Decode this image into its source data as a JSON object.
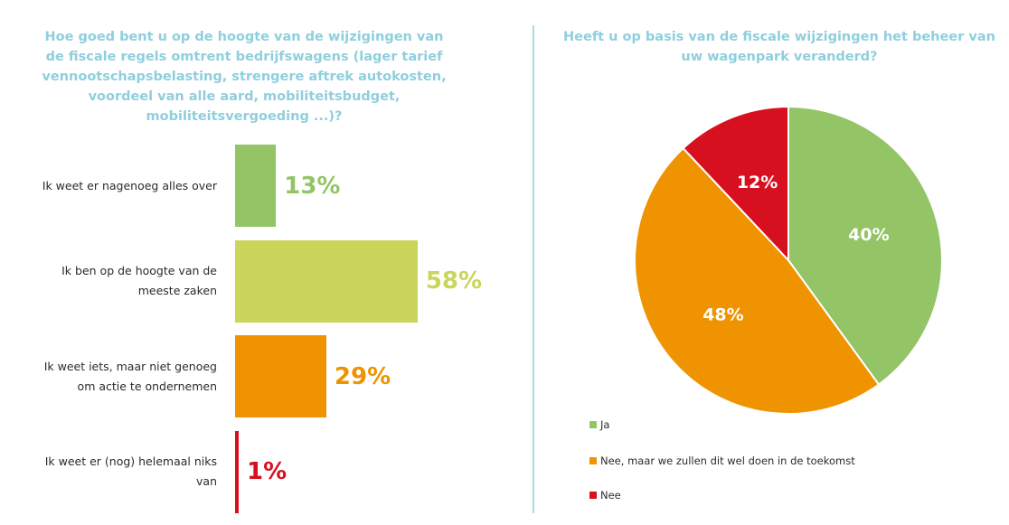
{
  "chart_data": [
    {
      "type": "bar",
      "orientation": "horizontal",
      "title": "Hoe goed bent u op de hoogte van de wijzigingen van de fiscale regels omtrent bedrijfswagens (lager tarief vennootschapsbelasting, strengere aftrek autokosten, voordeel van alle aard, mobiliteitsbudget, mobiliteitsvergoeding ...)?",
      "categories": [
        "Ik weet er nagenoeg alles over",
        "Ik ben op de hoogte van de meeste zaken",
        "Ik weet iets, maar niet genoeg om actie te ondernemen",
        "Ik weet er (nog) helemaal niks van"
      ],
      "values": [
        13,
        58,
        29,
        1
      ],
      "value_labels": [
        "13%",
        "58%",
        "29%",
        "1%"
      ],
      "colors": [
        "#93c465",
        "#c9d55b",
        "#ef9300",
        "#d7101f"
      ]
    },
    {
      "type": "pie",
      "title": "Heeft u op basis van de fiscale wijzigingen het beheer van uw wagenpark veranderd?",
      "categories": [
        "Ja",
        "Nee, maar we zullen dit wel doen in de toekomst",
        "Nee"
      ],
      "values": [
        40,
        48,
        12
      ],
      "value_labels": [
        "40%",
        "48%",
        "12%"
      ],
      "colors": [
        "#93c465",
        "#ef9300",
        "#d7101f"
      ],
      "legend_position": "bottom-left"
    }
  ]
}
